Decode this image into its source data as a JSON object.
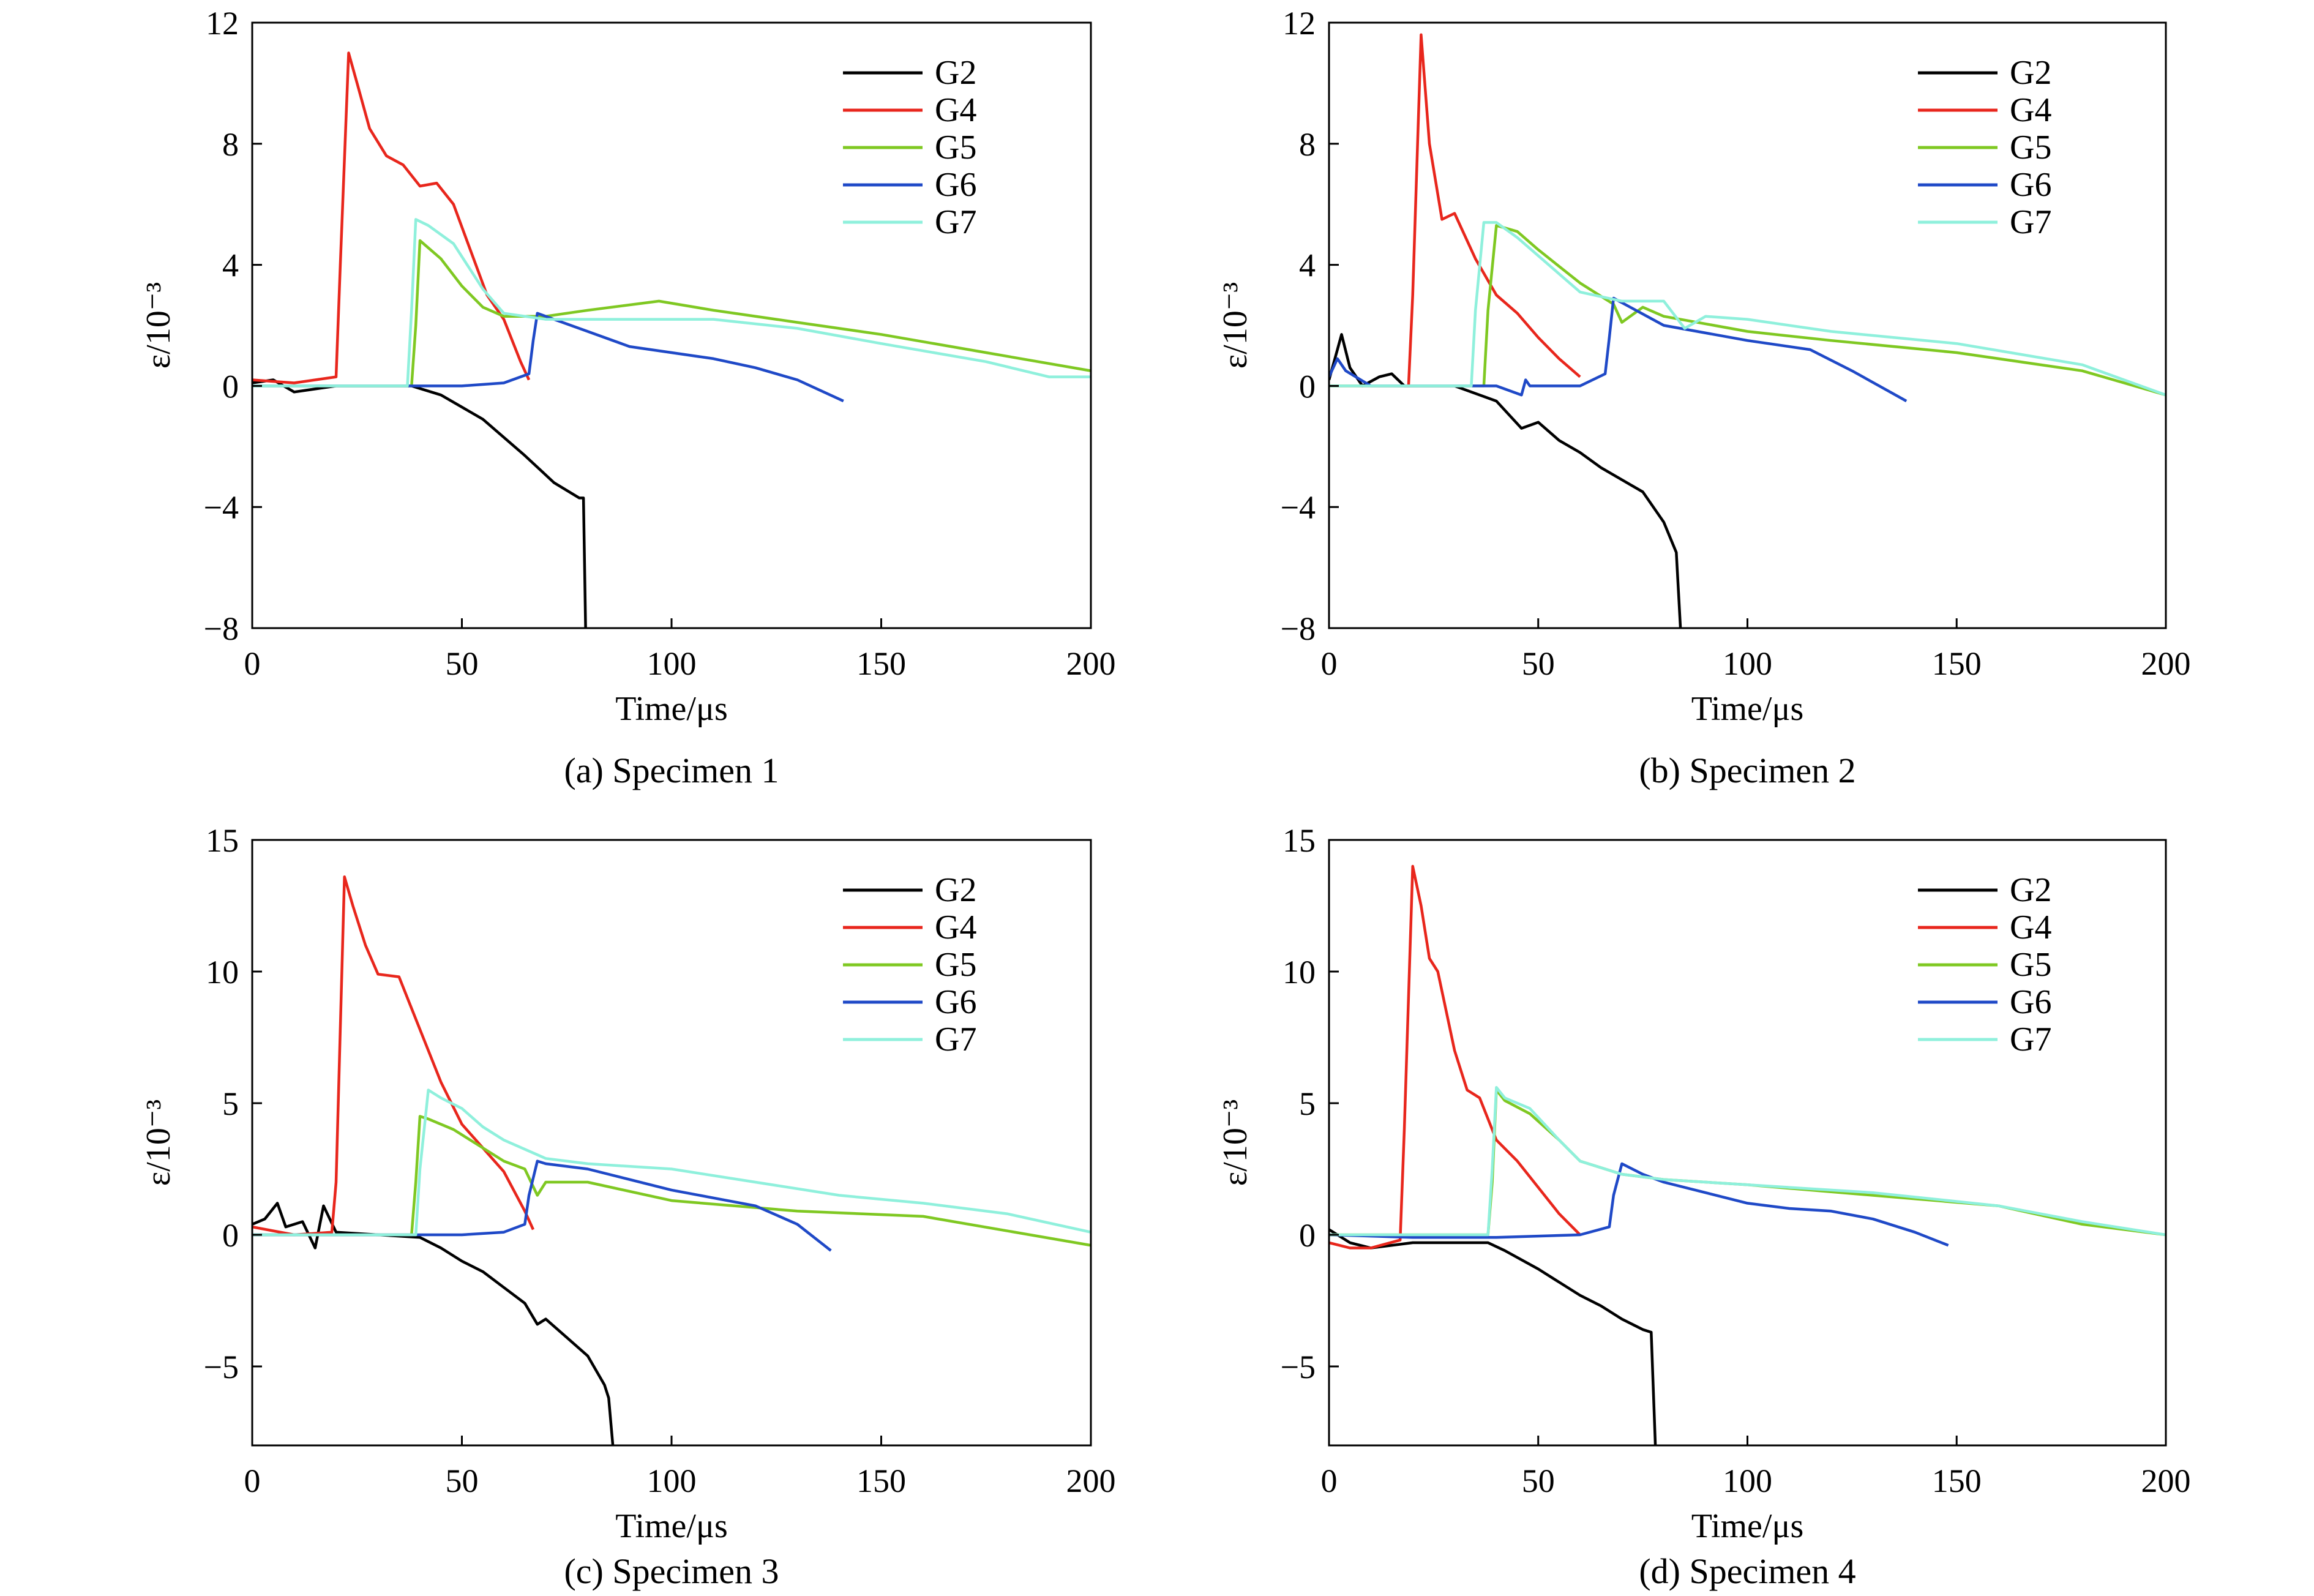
{
  "figure": {
    "panels_count": 4
  },
  "chart_data": [
    {
      "type": "line",
      "caption": "(a) Specimen 1",
      "xlabel": "Time/μs",
      "ylabel": "ε/10⁻³",
      "xlim": [
        0,
        200
      ],
      "ylim": [
        -8,
        12
      ],
      "xticks": [
        "0",
        "50",
        "100",
        "150",
        "200"
      ],
      "yticks": [
        "12",
        "8",
        "4",
        "0",
        "−4",
        "−8"
      ],
      "ytick_values": [
        12,
        8,
        4,
        0,
        -4,
        -8
      ],
      "legend": {
        "placement": "top-right"
      },
      "grid": false,
      "series": [
        {
          "name": "G2",
          "color": "#000000",
          "x": [
            0,
            5,
            10,
            20,
            30,
            38,
            45,
            55,
            65,
            72,
            78,
            79,
            79.5
          ],
          "y": [
            0.1,
            0.2,
            -0.2,
            0,
            0,
            0,
            -0.3,
            -1.1,
            -2.3,
            -3.2,
            -3.7,
            -3.7,
            -8
          ]
        },
        {
          "name": "G4",
          "color": "#e8261c",
          "x": [
            0,
            10,
            20,
            21,
            23,
            25,
            28,
            32,
            36,
            40,
            44,
            48,
            52,
            56,
            60,
            64,
            66
          ],
          "y": [
            0.2,
            0.1,
            0.3,
            4,
            11,
            10,
            8.5,
            7.6,
            7.3,
            6.6,
            6.7,
            6,
            4.5,
            3,
            2.2,
            0.8,
            0.2
          ]
        },
        {
          "name": "G5",
          "color": "#7fc822",
          "x": [
            0,
            20,
            38,
            39,
            40,
            45,
            50,
            55,
            60,
            70,
            80,
            97,
            110,
            130,
            150,
            175,
            200
          ],
          "y": [
            0,
            0,
            0,
            2,
            4.8,
            4.2,
            3.3,
            2.6,
            2.3,
            2.3,
            2.5,
            2.8,
            2.5,
            2.1,
            1.7,
            1.1,
            0.5
          ]
        },
        {
          "name": "G6",
          "color": "#1f49c7",
          "x": [
            0,
            20,
            40,
            50,
            60,
            66,
            67,
            68,
            70,
            80,
            90,
            100,
            110,
            120,
            130,
            141
          ],
          "y": [
            0,
            0,
            0,
            0,
            0.1,
            0.4,
            1.5,
            2.4,
            2.3,
            1.8,
            1.3,
            1.1,
            0.9,
            0.6,
            0.2,
            -0.5
          ]
        },
        {
          "name": "G7",
          "color": "#8ff0dc",
          "x": [
            0,
            20,
            37,
            38,
            39,
            42,
            48,
            55,
            60,
            70,
            90,
            110,
            130,
            150,
            175,
            190,
            200
          ],
          "y": [
            0,
            0,
            0,
            2.5,
            5.5,
            5.3,
            4.7,
            3.2,
            2.4,
            2.2,
            2.2,
            2.2,
            1.9,
            1.4,
            0.8,
            0.3,
            0.3
          ]
        }
      ]
    },
    {
      "type": "line",
      "caption": "(b) Specimen 2",
      "xlabel": "Time/μs",
      "ylabel": "ε/10⁻³",
      "xlim": [
        0,
        200
      ],
      "ylim": [
        -8,
        12
      ],
      "xticks": [
        "0",
        "50",
        "100",
        "150",
        "200"
      ],
      "yticks": [
        "12",
        "8",
        "4",
        "0",
        "−4",
        "−8"
      ],
      "ytick_values": [
        12,
        8,
        4,
        0,
        -4,
        -8
      ],
      "legend": {
        "placement": "top-right"
      },
      "grid": false,
      "series": [
        {
          "name": "G2",
          "color": "#000000",
          "x": [
            0,
            2,
            3,
            5,
            8,
            12,
            15,
            18,
            30,
            40,
            46,
            50,
            55,
            60,
            65,
            70,
            75,
            80,
            83,
            84
          ],
          "y": [
            0.2,
            1.2,
            1.7,
            0.6,
            0,
            0.3,
            0.4,
            0,
            0,
            -0.5,
            -1.4,
            -1.2,
            -1.8,
            -2.2,
            -2.7,
            -3.1,
            -3.5,
            -4.5,
            -5.5,
            -8
          ]
        },
        {
          "name": "G4",
          "color": "#e8261c",
          "x": [
            0,
            10,
            19,
            20,
            22,
            24,
            27,
            30,
            35,
            40,
            45,
            50,
            55,
            60
          ],
          "y": [
            0,
            0,
            0,
            3,
            11.6,
            8,
            5.5,
            5.7,
            4.2,
            3,
            2.4,
            1.6,
            0.9,
            0.3
          ]
        },
        {
          "name": "G5",
          "color": "#7fc822",
          "x": [
            0,
            30,
            37,
            38,
            40,
            45,
            50,
            60,
            68,
            70,
            75,
            80,
            100,
            120,
            150,
            180,
            200
          ],
          "y": [
            0,
            0,
            0,
            2.5,
            5.3,
            5.1,
            4.5,
            3.4,
            2.7,
            2.1,
            2.6,
            2.3,
            1.8,
            1.5,
            1.1,
            0.5,
            -0.3
          ]
        },
        {
          "name": "G6",
          "color": "#1f49c7",
          "x": [
            0,
            2,
            4,
            10,
            20,
            40,
            46,
            47,
            48,
            60,
            66,
            67,
            68,
            72,
            80,
            100,
            115,
            125,
            138
          ],
          "y": [
            0.3,
            0.9,
            0.5,
            0,
            0,
            0,
            -0.3,
            0.2,
            0,
            0,
            0.4,
            1.6,
            2.9,
            2.6,
            2,
            1.5,
            1.2,
            0.5,
            -0.5
          ]
        },
        {
          "name": "G7",
          "color": "#8ff0dc",
          "x": [
            0,
            30,
            34,
            35,
            37,
            40,
            45,
            55,
            60,
            70,
            80,
            85,
            90,
            100,
            120,
            150,
            180,
            200
          ],
          "y": [
            0,
            0,
            0,
            2.5,
            5.4,
            5.4,
            4.9,
            3.7,
            3.1,
            2.8,
            2.8,
            1.9,
            2.3,
            2.2,
            1.8,
            1.4,
            0.7,
            -0.3
          ]
        }
      ]
    },
    {
      "type": "line",
      "caption": "(c) Specimen 3",
      "xlabel": "Time/μs",
      "ylabel": "ε/10⁻³",
      "xlim": [
        0,
        200
      ],
      "ylim": [
        -8,
        15
      ],
      "xticks": [
        "0",
        "50",
        "100",
        "150",
        "200"
      ],
      "yticks": [
        "15",
        "10",
        "5",
        "0",
        "−5"
      ],
      "ytick_values": [
        15,
        10,
        5,
        0,
        -5
      ],
      "legend": {
        "placement": "top-right"
      },
      "grid": false,
      "series": [
        {
          "name": "G2",
          "color": "#000000",
          "x": [
            0,
            3,
            6,
            8,
            12,
            15,
            17,
            20,
            30,
            40,
            45,
            50,
            55,
            60,
            65,
            68,
            70,
            75,
            80,
            84,
            85,
            86
          ],
          "y": [
            0.4,
            0.6,
            1.2,
            0.3,
            0.5,
            -0.5,
            1.1,
            0.1,
            0,
            -0.1,
            -0.5,
            -1,
            -1.4,
            -2,
            -2.6,
            -3.4,
            -3.2,
            -3.9,
            -4.6,
            -5.7,
            -6.2,
            -8
          ]
        },
        {
          "name": "G4",
          "color": "#e8261c",
          "x": [
            0,
            10,
            19,
            20,
            22,
            24,
            27,
            30,
            35,
            40,
            45,
            50,
            55,
            60,
            65,
            67
          ],
          "y": [
            0.3,
            0,
            0.1,
            2,
            13.6,
            12.5,
            11,
            9.9,
            9.8,
            7.8,
            5.8,
            4.2,
            3.3,
            2.4,
            0.9,
            0.2
          ]
        },
        {
          "name": "G5",
          "color": "#7fc822",
          "x": [
            0,
            30,
            38,
            39,
            40,
            42,
            48,
            55,
            60,
            65,
            68,
            70,
            80,
            100,
            130,
            160,
            200
          ],
          "y": [
            0,
            0,
            0,
            2,
            4.5,
            4.4,
            4,
            3.3,
            2.8,
            2.5,
            1.5,
            2,
            2,
            1.3,
            0.9,
            0.7,
            -0.4
          ]
        },
        {
          "name": "G6",
          "color": "#1f49c7",
          "x": [
            0,
            20,
            40,
            50,
            60,
            65,
            66,
            68,
            70,
            80,
            90,
            100,
            110,
            120,
            130,
            138
          ],
          "y": [
            0,
            0,
            0,
            0,
            0.1,
            0.4,
            1.5,
            2.8,
            2.7,
            2.5,
            2.1,
            1.7,
            1.4,
            1.1,
            0.4,
            -0.6
          ]
        },
        {
          "name": "G7",
          "color": "#8ff0dc",
          "x": [
            0,
            30,
            39,
            40,
            42,
            45,
            50,
            55,
            60,
            70,
            80,
            100,
            120,
            140,
            160,
            180,
            200
          ],
          "y": [
            0,
            0,
            0,
            2.5,
            5.5,
            5.2,
            4.8,
            4.1,
            3.6,
            2.9,
            2.7,
            2.5,
            2,
            1.5,
            1.2,
            0.8,
            0.1
          ]
        }
      ]
    },
    {
      "type": "line",
      "caption": "(d) Specimen 4",
      "xlabel": "Time/μs",
      "ylabel": "ε/10⁻³",
      "xlim": [
        0,
        200
      ],
      "ylim": [
        -8,
        15
      ],
      "xticks": [
        "0",
        "50",
        "100",
        "150",
        "200"
      ],
      "yticks": [
        "15",
        "10",
        "5",
        "0",
        "−5"
      ],
      "ytick_values": [
        15,
        10,
        5,
        0,
        -5
      ],
      "legend": {
        "placement": "top-right"
      },
      "grid": false,
      "series": [
        {
          "name": "G2",
          "color": "#000000",
          "x": [
            0,
            5,
            10,
            20,
            30,
            38,
            42,
            50,
            55,
            60,
            65,
            70,
            75,
            77,
            78
          ],
          "y": [
            0.2,
            -0.3,
            -0.5,
            -0.3,
            -0.3,
            -0.3,
            -0.6,
            -1.3,
            -1.8,
            -2.3,
            -2.7,
            -3.2,
            -3.6,
            -3.7,
            -8
          ]
        },
        {
          "name": "G4",
          "color": "#e8261c",
          "x": [
            0,
            5,
            10,
            17,
            18,
            20,
            22,
            24,
            26,
            28,
            30,
            33,
            36,
            40,
            45,
            50,
            55,
            60
          ],
          "y": [
            -0.3,
            -0.5,
            -0.5,
            -0.2,
            4,
            14,
            12.5,
            10.5,
            10,
            8.5,
            7,
            5.5,
            5.2,
            3.6,
            2.8,
            1.8,
            0.8,
            0
          ]
        },
        {
          "name": "G5",
          "color": "#7fc822",
          "x": [
            0,
            30,
            38,
            39,
            40,
            42,
            48,
            55,
            60,
            70,
            80,
            100,
            130,
            160,
            180,
            200
          ],
          "y": [
            0,
            0,
            0,
            2,
            5.5,
            5.1,
            4.6,
            3.6,
            2.8,
            2.3,
            2.1,
            1.9,
            1.5,
            1.1,
            0.4,
            0
          ]
        },
        {
          "name": "G6",
          "color": "#1f49c7",
          "x": [
            0,
            20,
            40,
            60,
            67,
            68,
            70,
            75,
            80,
            90,
            100,
            110,
            120,
            130,
            140,
            148
          ],
          "y": [
            0,
            -0.1,
            -0.1,
            0,
            0.3,
            1.5,
            2.7,
            2.3,
            2,
            1.6,
            1.2,
            1,
            0.9,
            0.6,
            0.1,
            -0.4
          ]
        },
        {
          "name": "G7",
          "color": "#8ff0dc",
          "x": [
            0,
            30,
            38,
            39,
            40,
            42,
            48,
            55,
            60,
            70,
            80,
            100,
            130,
            160,
            180,
            200
          ],
          "y": [
            0,
            0,
            0,
            2.5,
            5.6,
            5.2,
            4.8,
            3.6,
            2.8,
            2.3,
            2.1,
            1.9,
            1.6,
            1.1,
            0.5,
            0
          ]
        }
      ]
    }
  ]
}
